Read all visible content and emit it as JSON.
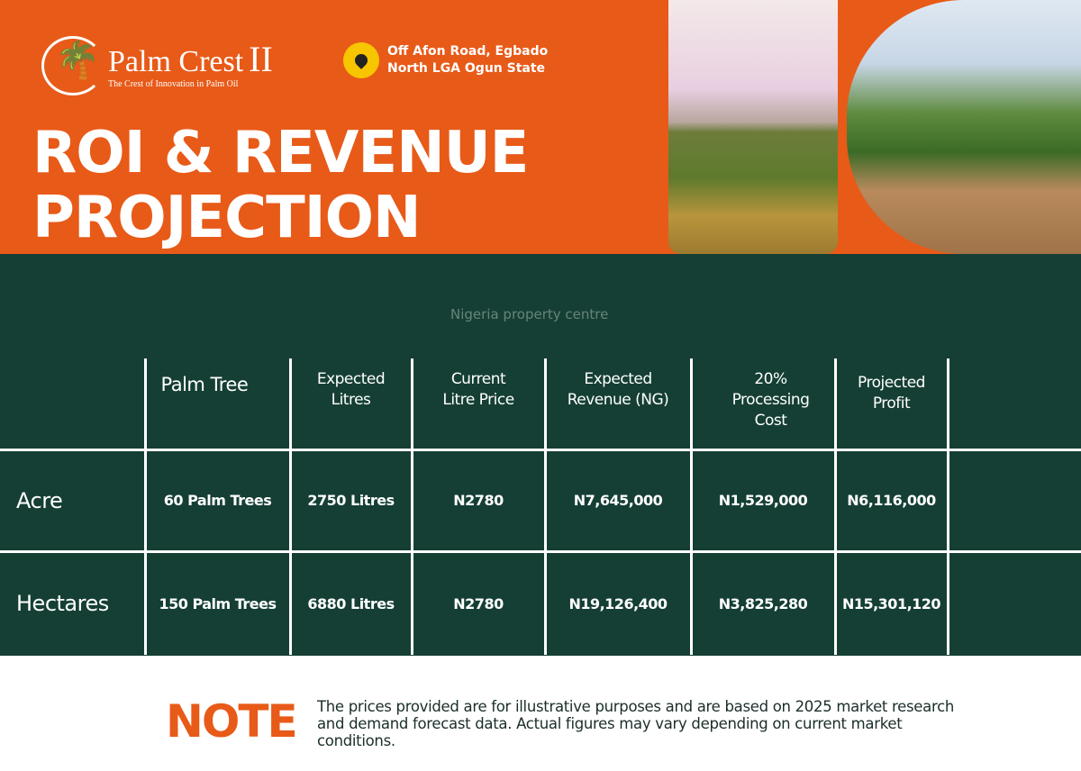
{
  "brand": {
    "name": "Palm Crest",
    "numeral": "II",
    "tagline": "The Crest of Innovation in Palm Oil"
  },
  "location": {
    "line1": "Off Afon Road, Egbado",
    "line2": "North LGA Ogun State",
    "icon": "map-pin-icon"
  },
  "title": {
    "line1": "ROI & REVENUE",
    "line2": "PROJECTION"
  },
  "watermark": "Nigeria property centre",
  "table": {
    "headers": [
      "",
      "Palm Tree",
      "Expected Litres",
      "Current Litre Price",
      "Expected Revenue (NG)",
      "20% Processing Cost",
      "Projected Profit",
      ""
    ],
    "rows": [
      {
        "label": "Acre",
        "cells": [
          "60 Palm Trees",
          "2750 Litres",
          "N2780",
          "N7,645,000",
          "N1,529,000",
          "N6,116,000",
          ""
        ]
      },
      {
        "label": "Hectares",
        "cells": [
          "150 Palm Trees",
          "6880 Litres",
          "N2780",
          "N19,126,400",
          "N3,825,280",
          "N15,301,120",
          ""
        ]
      }
    ]
  },
  "note": {
    "label": "NOTE",
    "text": "The prices provided are for illustrative purposes and are based on 2025 market research and demand forecast data. Actual figures may vary depending on current market conditions."
  },
  "colors": {
    "orange": "#E85A18",
    "green": "#153F34",
    "pin": "#F7C600"
  }
}
